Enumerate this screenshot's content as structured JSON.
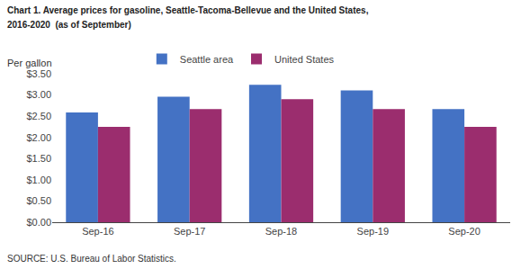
{
  "chart_data": {
    "type": "bar",
    "title": "Chart 1. Average prices for gasoline, Seattle-Tacoma-Bellevue and the United States,",
    "subtitle": "2016-2020  (as of September)",
    "ylabel": "Per gallon",
    "annotations": [
      "SOURCE: U.S. Bureau of Labor Statistics."
    ],
    "categories": [
      "Sep-16",
      "Sep-17",
      "Sep-18",
      "Sep-19",
      "Sep-20"
    ],
    "series": [
      {
        "name": "Seattle area",
        "color": "#4472C4",
        "values": [
          2.59,
          2.96,
          3.24,
          3.11,
          2.67
        ]
      },
      {
        "name": "United States",
        "color": "#9B2D6E",
        "values": [
          2.25,
          2.67,
          2.9,
          2.67,
          2.25
        ]
      }
    ],
    "ylim": [
      0.0,
      3.5
    ],
    "yticks": [
      {
        "value": 0.0,
        "label": "$0.00"
      },
      {
        "value": 0.5,
        "label": "$0.50"
      },
      {
        "value": 1.0,
        "label": "$1.00"
      },
      {
        "value": 1.5,
        "label": "$1.50"
      },
      {
        "value": 2.0,
        "label": "$2.00"
      },
      {
        "value": 2.5,
        "label": "$2.50"
      },
      {
        "value": 3.0,
        "label": "$3.00"
      },
      {
        "value": 3.5,
        "label": "$3.50"
      }
    ],
    "grid": false,
    "legend": "top"
  }
}
